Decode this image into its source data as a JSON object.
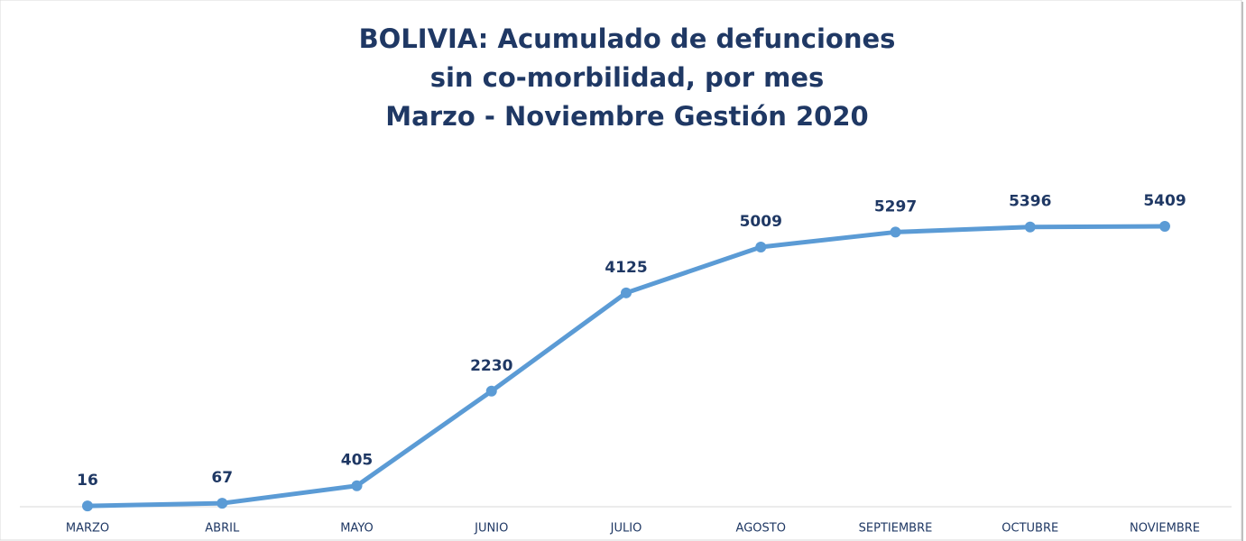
{
  "chart_data": {
    "type": "line",
    "title": [
      "BOLIVIA: Acumulado de defunciones",
      "sin co-morbilidad, por mes",
      "Marzo - Noviembre Gestión 2020"
    ],
    "categories": [
      "MARZO",
      "ABRIL",
      "MAYO",
      "JUNIO",
      "JULIO",
      "AGOSTO",
      "SEPTIEMBRE",
      "OCTUBRE",
      "NOVIEMBRE"
    ],
    "series": [
      {
        "color": "#5b9bd5",
        "values": [
          16,
          67,
          405,
          2230,
          4125,
          5009,
          5297,
          5396,
          5409
        ]
      }
    ],
    "ylim": [
      0,
      6000
    ]
  }
}
